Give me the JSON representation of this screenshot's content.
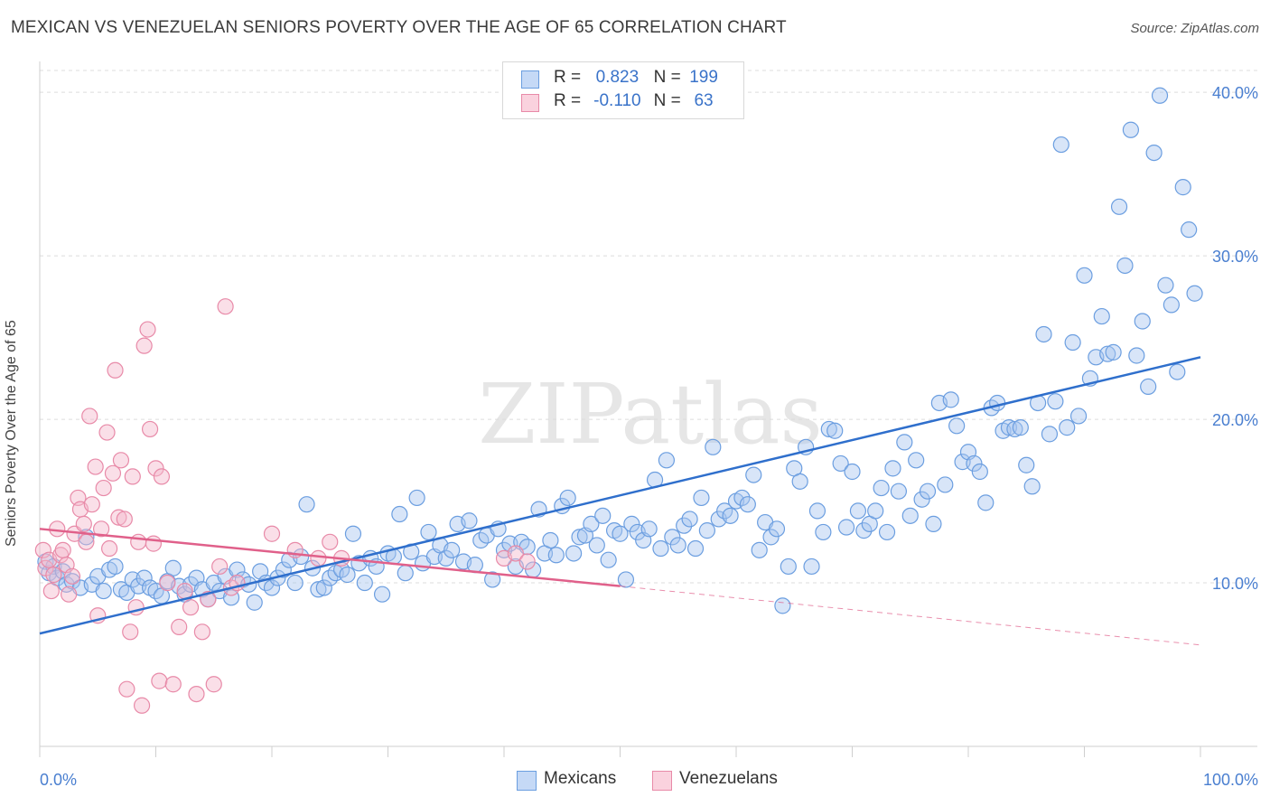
{
  "header": {
    "title": "MEXICAN VS VENEZUELAN SENIORS POVERTY OVER THE AGE OF 65 CORRELATION CHART",
    "source": "Source: ZipAtlas.com"
  },
  "watermark": "ZIPatlas",
  "legend": {
    "rows": [
      {
        "r_label": "R =",
        "r_value": "0.823",
        "n_label": "N =",
        "n_value": "199",
        "color": "#a9c6f0"
      },
      {
        "r_label": "R =",
        "r_value": "-0.110",
        "n_label": "N =",
        "n_value": "63",
        "color": "#f5b8cb"
      }
    ]
  },
  "bottom_legend": {
    "mexicans": "Mexicans",
    "venezuelans": "Venezuelans"
  },
  "colors": {
    "mexican_fill": "#a9c6f0",
    "mexican_stroke": "#6b9ee0",
    "mexican_line": "#2f6fcc",
    "venezuelan_fill": "#f5b8cb",
    "venezuelan_stroke": "#e88aa8",
    "venezuelan_line": "#e0608a",
    "tick_text": "#4a7fd0"
  },
  "chart_data": {
    "type": "scatter",
    "title": "MEXICAN VS VENEZUELAN SENIORS POVERTY OVER THE AGE OF 65 CORRELATION CHART",
    "xlabel": "",
    "ylabel": "Seniors Poverty Over the Age of 65",
    "xlim": [
      0,
      100
    ],
    "ylim": [
      0,
      41.5
    ],
    "x_tick_labels": [
      "0.0%",
      "100.0%"
    ],
    "y_ticks": [
      10,
      20,
      30,
      40
    ],
    "y_tick_labels": [
      "10.0%",
      "20.0%",
      "30.0%",
      "40.0%"
    ],
    "grid": true,
    "series": [
      {
        "name": "Mexicans",
        "r": 0.823,
        "n": 199,
        "trend": {
          "x": [
            0,
            100
          ],
          "y": [
            6.9,
            23.8
          ]
        },
        "points": [
          [
            0.5,
            11.3
          ],
          [
            0.8,
            10.6
          ],
          [
            1.2,
            11.0
          ],
          [
            1.5,
            10.3
          ],
          [
            2,
            10.7
          ],
          [
            2.3,
            9.9
          ],
          [
            2.8,
            10.1
          ],
          [
            3.5,
            9.7
          ],
          [
            4,
            12.8
          ],
          [
            4.5,
            9.9
          ],
          [
            5,
            10.4
          ],
          [
            5.5,
            9.5
          ],
          [
            6,
            10.8
          ],
          [
            6.5,
            11.0
          ],
          [
            7,
            9.6
          ],
          [
            7.5,
            9.4
          ],
          [
            8,
            10.2
          ],
          [
            8.5,
            9.8
          ],
          [
            9,
            10.3
          ],
          [
            9.5,
            9.7
          ],
          [
            10,
            9.5
          ],
          [
            10.5,
            9.2
          ],
          [
            11,
            10.1
          ],
          [
            11.5,
            10.9
          ],
          [
            12,
            9.8
          ],
          [
            12.5,
            9.3
          ],
          [
            13,
            9.9
          ],
          [
            13.5,
            10.3
          ],
          [
            14,
            9.6
          ],
          [
            14.5,
            9.0
          ],
          [
            15,
            10.0
          ],
          [
            15.5,
            9.5
          ],
          [
            16,
            10.4
          ],
          [
            16.5,
            9.1
          ],
          [
            17,
            10.8
          ],
          [
            17.5,
            10.2
          ],
          [
            18,
            9.9
          ],
          [
            18.5,
            8.8
          ],
          [
            19,
            10.7
          ],
          [
            19.5,
            10.0
          ],
          [
            20,
            9.7
          ],
          [
            20.5,
            10.3
          ],
          [
            21,
            10.8
          ],
          [
            21.5,
            11.4
          ],
          [
            22,
            10.0
          ],
          [
            22.5,
            11.6
          ],
          [
            23,
            14.8
          ],
          [
            23.5,
            10.9
          ],
          [
            24,
            9.6
          ],
          [
            24.5,
            9.7
          ],
          [
            25,
            10.3
          ],
          [
            25.5,
            10.6
          ],
          [
            26,
            10.8
          ],
          [
            26.5,
            10.5
          ],
          [
            27,
            13.0
          ],
          [
            27.5,
            11.2
          ],
          [
            28,
            10.0
          ],
          [
            28.5,
            11.5
          ],
          [
            29,
            11.0
          ],
          [
            29.5,
            9.3
          ],
          [
            30,
            11.8
          ],
          [
            30.5,
            11.6
          ],
          [
            31,
            14.2
          ],
          [
            31.5,
            10.6
          ],
          [
            32,
            11.9
          ],
          [
            32.5,
            15.2
          ],
          [
            33,
            11.2
          ],
          [
            33.5,
            13.1
          ],
          [
            34,
            11.6
          ],
          [
            34.5,
            12.3
          ],
          [
            35,
            11.5
          ],
          [
            35.5,
            12.0
          ],
          [
            36,
            13.6
          ],
          [
            36.5,
            11.3
          ],
          [
            37,
            13.8
          ],
          [
            37.5,
            11.1
          ],
          [
            38,
            12.6
          ],
          [
            38.5,
            12.9
          ],
          [
            39,
            10.2
          ],
          [
            39.5,
            13.3
          ],
          [
            40,
            12.0
          ],
          [
            40.5,
            12.4
          ],
          [
            41,
            11.0
          ],
          [
            41.5,
            12.5
          ],
          [
            42,
            12.2
          ],
          [
            42.5,
            10.8
          ],
          [
            43,
            14.5
          ],
          [
            43.5,
            11.8
          ],
          [
            44,
            12.6
          ],
          [
            44.5,
            11.7
          ],
          [
            45,
            14.7
          ],
          [
            45.5,
            15.2
          ],
          [
            46,
            11.8
          ],
          [
            46.5,
            12.8
          ],
          [
            47,
            12.9
          ],
          [
            47.5,
            13.6
          ],
          [
            48,
            12.3
          ],
          [
            48.5,
            14.1
          ],
          [
            49,
            11.4
          ],
          [
            49.5,
            13.2
          ],
          [
            50,
            13.0
          ],
          [
            50.5,
            10.2
          ],
          [
            51,
            13.6
          ],
          [
            51.5,
            13.1
          ],
          [
            52,
            12.6
          ],
          [
            52.5,
            13.3
          ],
          [
            53,
            16.3
          ],
          [
            53.5,
            12.1
          ],
          [
            54,
            17.5
          ],
          [
            54.5,
            12.8
          ],
          [
            55,
            12.3
          ],
          [
            55.5,
            13.5
          ],
          [
            56,
            13.9
          ],
          [
            56.5,
            12.1
          ],
          [
            57,
            15.2
          ],
          [
            57.5,
            13.2
          ],
          [
            58,
            18.3
          ],
          [
            58.5,
            13.9
          ],
          [
            59,
            14.4
          ],
          [
            59.5,
            14.1
          ],
          [
            60,
            15.0
          ],
          [
            60.5,
            15.2
          ],
          [
            61,
            14.8
          ],
          [
            61.5,
            16.6
          ],
          [
            62,
            12.0
          ],
          [
            62.5,
            13.7
          ],
          [
            63,
            12.8
          ],
          [
            63.5,
            13.3
          ],
          [
            64,
            8.6
          ],
          [
            64.5,
            11.0
          ],
          [
            65,
            17.0
          ],
          [
            65.5,
            16.2
          ],
          [
            66,
            18.3
          ],
          [
            66.5,
            11.0
          ],
          [
            67,
            14.4
          ],
          [
            67.5,
            13.1
          ],
          [
            68,
            19.4
          ],
          [
            68.5,
            19.3
          ],
          [
            69,
            17.3
          ],
          [
            69.5,
            13.4
          ],
          [
            70,
            16.8
          ],
          [
            70.5,
            14.4
          ],
          [
            71,
            13.2
          ],
          [
            71.5,
            13.6
          ],
          [
            72,
            14.4
          ],
          [
            72.5,
            15.8
          ],
          [
            73,
            13.1
          ],
          [
            73.5,
            17.0
          ],
          [
            74,
            15.6
          ],
          [
            74.5,
            18.6
          ],
          [
            75,
            14.1
          ],
          [
            75.5,
            17.5
          ],
          [
            76,
            15.1
          ],
          [
            76.5,
            15.6
          ],
          [
            77,
            13.6
          ],
          [
            77.5,
            21.0
          ],
          [
            78,
            16.0
          ],
          [
            78.5,
            21.2
          ],
          [
            79,
            19.6
          ],
          [
            79.5,
            17.4
          ],
          [
            80,
            18.0
          ],
          [
            80.5,
            17.3
          ],
          [
            81,
            16.8
          ],
          [
            81.5,
            14.9
          ],
          [
            82,
            20.7
          ],
          [
            82.5,
            21.0
          ],
          [
            83,
            19.3
          ],
          [
            83.5,
            19.5
          ],
          [
            84,
            19.4
          ],
          [
            84.5,
            19.5
          ],
          [
            85,
            17.2
          ],
          [
            85.5,
            15.9
          ],
          [
            86,
            21.0
          ],
          [
            86.5,
            25.2
          ],
          [
            87,
            19.1
          ],
          [
            87.5,
            21.1
          ],
          [
            88,
            36.8
          ],
          [
            88.5,
            19.5
          ],
          [
            89,
            24.7
          ],
          [
            89.5,
            20.2
          ],
          [
            90,
            28.8
          ],
          [
            90.5,
            22.5
          ],
          [
            91,
            23.8
          ],
          [
            91.5,
            26.3
          ],
          [
            92,
            24.0
          ],
          [
            92.5,
            24.1
          ],
          [
            93,
            33.0
          ],
          [
            93.5,
            29.4
          ],
          [
            94,
            37.7
          ],
          [
            94.5,
            23.9
          ],
          [
            95,
            26.0
          ],
          [
            95.5,
            22.0
          ],
          [
            96,
            36.3
          ],
          [
            96.5,
            39.8
          ],
          [
            97,
            28.2
          ],
          [
            97.5,
            27.0
          ],
          [
            98,
            22.9
          ],
          [
            98.5,
            34.2
          ],
          [
            99,
            31.6
          ],
          [
            99.5,
            27.7
          ]
        ]
      },
      {
        "name": "Venezuelans",
        "r": -0.11,
        "n": 63,
        "trend": {
          "x": [
            0,
            50
          ],
          "y": [
            13.3,
            9.8
          ],
          "dashed_extension": {
            "x": [
              50,
              100
            ],
            "y": [
              9.8,
              6.2
            ]
          }
        },
        "points": [
          [
            0.3,
            12.0
          ],
          [
            0.5,
            10.9
          ],
          [
            0.8,
            11.4
          ],
          [
            1,
            9.5
          ],
          [
            1.2,
            10.5
          ],
          [
            1.5,
            13.3
          ],
          [
            1.8,
            11.7
          ],
          [
            2,
            12.0
          ],
          [
            2.3,
            11.1
          ],
          [
            2.5,
            9.3
          ],
          [
            2.8,
            10.4
          ],
          [
            3,
            13.0
          ],
          [
            3.3,
            15.2
          ],
          [
            3.5,
            14.5
          ],
          [
            3.8,
            13.6
          ],
          [
            4,
            12.5
          ],
          [
            4.3,
            20.2
          ],
          [
            4.5,
            14.8
          ],
          [
            4.8,
            17.1
          ],
          [
            5,
            8.0
          ],
          [
            5.3,
            13.3
          ],
          [
            5.5,
            15.8
          ],
          [
            5.8,
            19.2
          ],
          [
            6,
            12.1
          ],
          [
            6.3,
            16.7
          ],
          [
            6.5,
            23.0
          ],
          [
            6.8,
            14.0
          ],
          [
            7,
            17.5
          ],
          [
            7.3,
            13.9
          ],
          [
            7.5,
            3.5
          ],
          [
            7.8,
            7.0
          ],
          [
            8,
            16.5
          ],
          [
            8.3,
            8.5
          ],
          [
            8.5,
            12.5
          ],
          [
            8.8,
            2.5
          ],
          [
            9,
            24.5
          ],
          [
            9.3,
            25.5
          ],
          [
            9.5,
            19.4
          ],
          [
            9.8,
            12.4
          ],
          [
            10,
            17.0
          ],
          [
            10.3,
            4.0
          ],
          [
            10.5,
            16.5
          ],
          [
            11,
            10.0
          ],
          [
            11.5,
            3.8
          ],
          [
            12,
            7.3
          ],
          [
            12.5,
            9.5
          ],
          [
            13,
            8.5
          ],
          [
            13.5,
            3.2
          ],
          [
            14,
            7.0
          ],
          [
            14.5,
            9.0
          ],
          [
            15,
            3.8
          ],
          [
            15.5,
            11.0
          ],
          [
            16,
            26.9
          ],
          [
            16.5,
            9.7
          ],
          [
            17,
            10.0
          ],
          [
            20,
            13.0
          ],
          [
            22,
            12.0
          ],
          [
            24,
            11.5
          ],
          [
            25,
            12.5
          ],
          [
            26,
            11.5
          ],
          [
            40,
            11.5
          ],
          [
            41,
            11.8
          ],
          [
            42,
            11.3
          ]
        ]
      }
    ]
  }
}
